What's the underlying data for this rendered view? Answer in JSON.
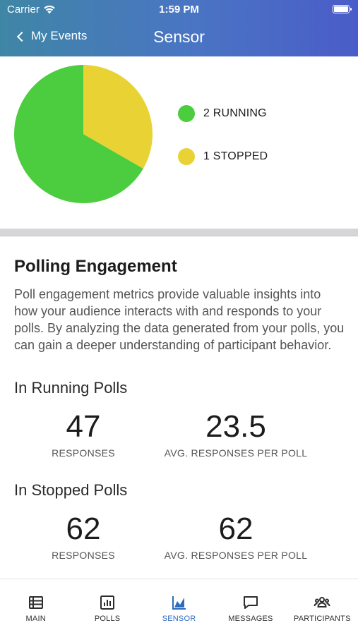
{
  "status_bar": {
    "carrier": "Carrier",
    "time": "1:59 PM"
  },
  "nav": {
    "back_label": "My Events",
    "title": "Sensor"
  },
  "chart_data": {
    "type": "pie",
    "slices": [
      {
        "label": "2 RUNNING",
        "value": 2,
        "color": "#4ccd3f"
      },
      {
        "label": "1 STOPPED",
        "value": 1,
        "color": "#e9d334"
      }
    ],
    "legend_position": "right"
  },
  "engagement": {
    "title": "Polling Engagement",
    "description": "Poll engagement metrics provide valuable insights into how your audience interacts with and responds to your polls. By analyzing the data generated from your polls, you can gain a deeper understanding of participant behavior."
  },
  "running": {
    "title": "In Running Polls",
    "responses": "47",
    "responses_label": "RESPONSES",
    "avg": "23.5",
    "avg_label": "AVG. RESPONSES PER POLL"
  },
  "stopped": {
    "title": "In Stopped Polls",
    "responses": "62",
    "responses_label": "RESPONSES",
    "avg": "62",
    "avg_label": "AVG. RESPONSES PER POLL"
  },
  "tabs": [
    {
      "label": "MAIN",
      "icon": "list-icon"
    },
    {
      "label": "POLLS",
      "icon": "bar-chart-icon"
    },
    {
      "label": "SENSOR",
      "icon": "sensor-icon",
      "active": true
    },
    {
      "label": "MESSAGES",
      "icon": "message-icon"
    },
    {
      "label": "PARTICIPANTS",
      "icon": "participants-icon"
    }
  ],
  "colors": {
    "active_tab": "#2d6ac0",
    "header_start": "#3f86a6",
    "header_end": "#4a5cc8"
  }
}
